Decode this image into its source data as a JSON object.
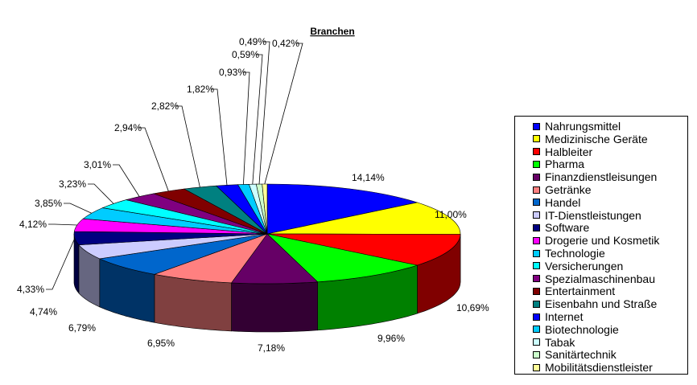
{
  "chart_data": {
    "type": "pie",
    "title": "Branchen",
    "legend_position": "right",
    "slices": [
      {
        "name": "Nahrungsmittel",
        "label": "14,14%",
        "value": 14.14,
        "color": "#0000ff"
      },
      {
        "name": "Medizinische Geräte",
        "label": "11,00%",
        "value": 11.0,
        "color": "#ffff00"
      },
      {
        "name": "Halbleiter",
        "label": "10,69%",
        "value": 10.69,
        "color": "#ff0000"
      },
      {
        "name": "Pharma",
        "label": "9,96%",
        "value": 9.96,
        "color": "#00ff00"
      },
      {
        "name": "Finanzdienstleisungen",
        "label": "7,18%",
        "value": 7.18,
        "color": "#660066"
      },
      {
        "name": "Getränke",
        "label": "6,95%",
        "value": 6.95,
        "color": "#ff8080"
      },
      {
        "name": "Handel",
        "label": "6,79%",
        "value": 6.79,
        "color": "#0066cc"
      },
      {
        "name": "IT-Dienstleistungen",
        "label": "4,74%",
        "value": 4.74,
        "color": "#ccccff"
      },
      {
        "name": "Software",
        "label": "4,33%",
        "value": 4.33,
        "color": "#000080"
      },
      {
        "name": "Drogerie und Kosmetik",
        "label": "4,12%",
        "value": 4.12,
        "color": "#ff00ff"
      },
      {
        "name": "Technologie",
        "label": "3,85%",
        "value": 3.85,
        "color": "#00ccff"
      },
      {
        "name": "Versicherungen",
        "label": "3,23%",
        "value": 3.23,
        "color": "#00ffff"
      },
      {
        "name": "Spezialmaschinenbau",
        "label": "3,01%",
        "value": 3.01,
        "color": "#800080"
      },
      {
        "name": "Entertainment",
        "label": "2,94%",
        "value": 2.94,
        "color": "#800000"
      },
      {
        "name": "Eisenbahn und Straße",
        "label": "2,82%",
        "value": 2.82,
        "color": "#008080"
      },
      {
        "name": "Internet",
        "label": "1,82%",
        "value": 1.82,
        "color": "#0000ff"
      },
      {
        "name": "Biotechnologie",
        "label": "0,93%",
        "value": 0.93,
        "color": "#00ccff"
      },
      {
        "name": "Tabak",
        "label": "0,59%",
        "value": 0.59,
        "color": "#ccffff"
      },
      {
        "name": "Sanitärtechnik",
        "label": "0,49%",
        "value": 0.49,
        "color": "#ccffcc"
      },
      {
        "name": "Mobilitätsdienstleister",
        "label": "0,42%",
        "value": 0.42,
        "color": "#ffff99"
      }
    ]
  }
}
